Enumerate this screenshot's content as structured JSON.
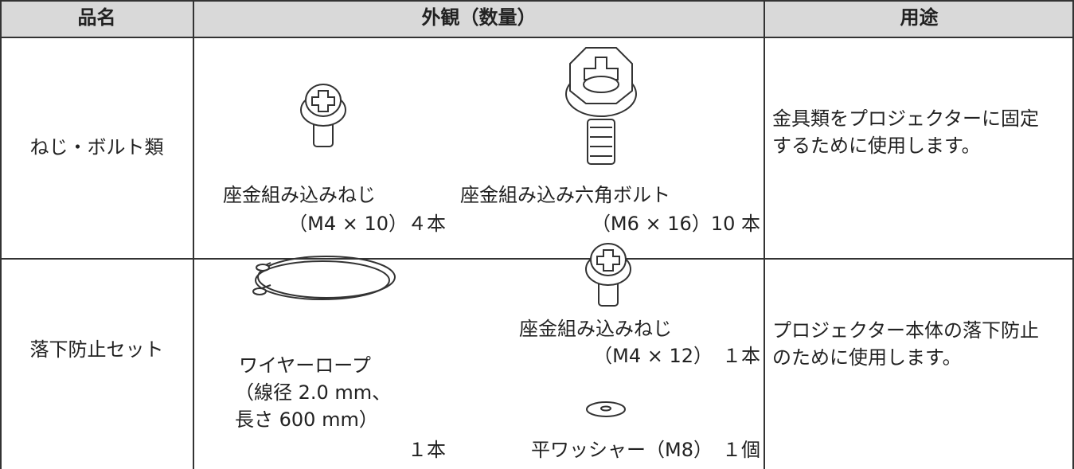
{
  "table": {
    "header": [
      "品名",
      "外観（数量）",
      "用途"
    ],
    "rows": [
      {
        "name": "ねじ・ボルト類",
        "items": [
          {
            "name": "座金組み込みねじ",
            "qty": "（M4 × 10）４本"
          },
          {
            "name": "座金組み込み六角ボルト",
            "qty": "（M6 × 16）10 本"
          }
        ],
        "use": "金具類をプロジェクターに固定するために使用します。"
      },
      {
        "name": "落下防止セット",
        "items": [
          {
            "name": "ワイヤーロープ",
            "spec": [
              "（線径 2.0 mm、",
              "長さ 600 mm）"
            ],
            "qty": "１本"
          },
          {
            "name": "座金組み込みねじ",
            "qty": "（M4 × 12）　１本"
          },
          {
            "name": "平ワッシャー（M8）　１個"
          }
        ],
        "use": "プロジェクター本体の落下防止のために使用します。"
      }
    ]
  }
}
